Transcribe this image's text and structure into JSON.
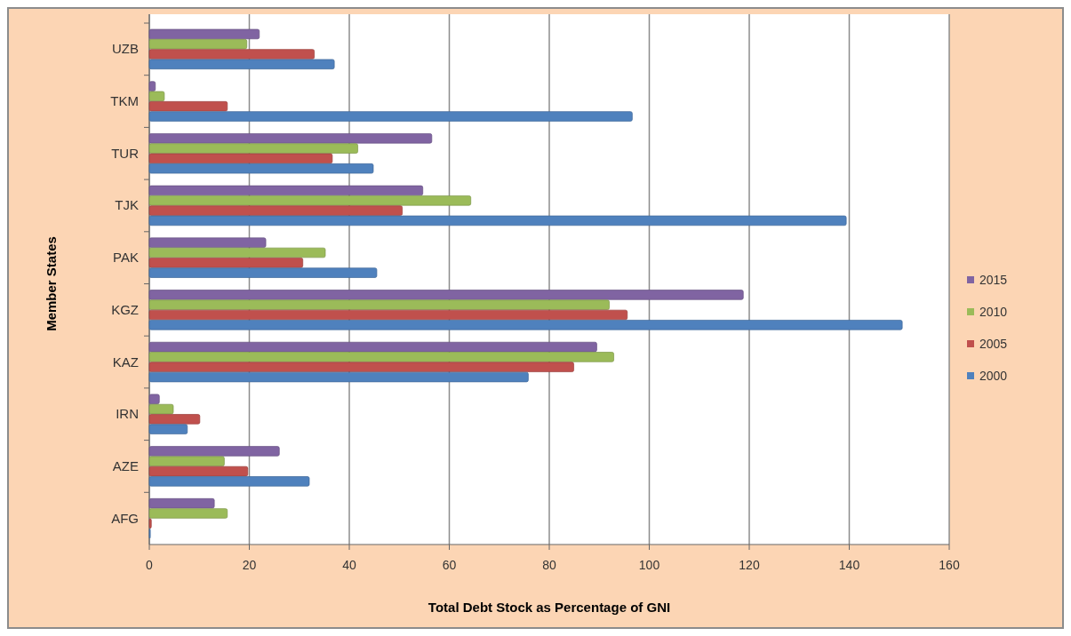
{
  "chart_data": {
    "type": "bar",
    "orientation": "horizontal",
    "xlabel": "Total Debt Stock as Percentage of GNI",
    "ylabel": "Member States",
    "categories": [
      "UZB",
      "TKM",
      "TUR",
      "TJK",
      "PAK",
      "KGZ",
      "KAZ",
      "IRN",
      "AZE",
      "AFG"
    ],
    "series": [
      {
        "name": "2015",
        "color": "#8064a2",
        "values": [
          22,
          1.2,
          56.5,
          54.7,
          23.3,
          118.8,
          89.5,
          2,
          26,
          13
        ]
      },
      {
        "name": "2010",
        "color": "#9bbb59",
        "values": [
          19.5,
          3,
          41.7,
          64.3,
          35.2,
          92,
          92.9,
          4.8,
          15,
          15.6
        ]
      },
      {
        "name": "2005",
        "color": "#c0504d",
        "values": [
          33,
          15.6,
          36.6,
          50.6,
          30.7,
          95.6,
          84.9,
          10.1,
          19.7,
          0.4
        ]
      },
      {
        "name": "2000",
        "color": "#4f81bd",
        "values": [
          37,
          96.6,
          44.8,
          139.4,
          45.5,
          150.6,
          75.8,
          7.6,
          32,
          0.2
        ]
      }
    ],
    "xlim": [
      0,
      160
    ],
    "xticks": [
      0,
      20,
      40,
      60,
      80,
      100,
      120,
      140,
      160
    ],
    "grid": "x",
    "legend": "right"
  }
}
